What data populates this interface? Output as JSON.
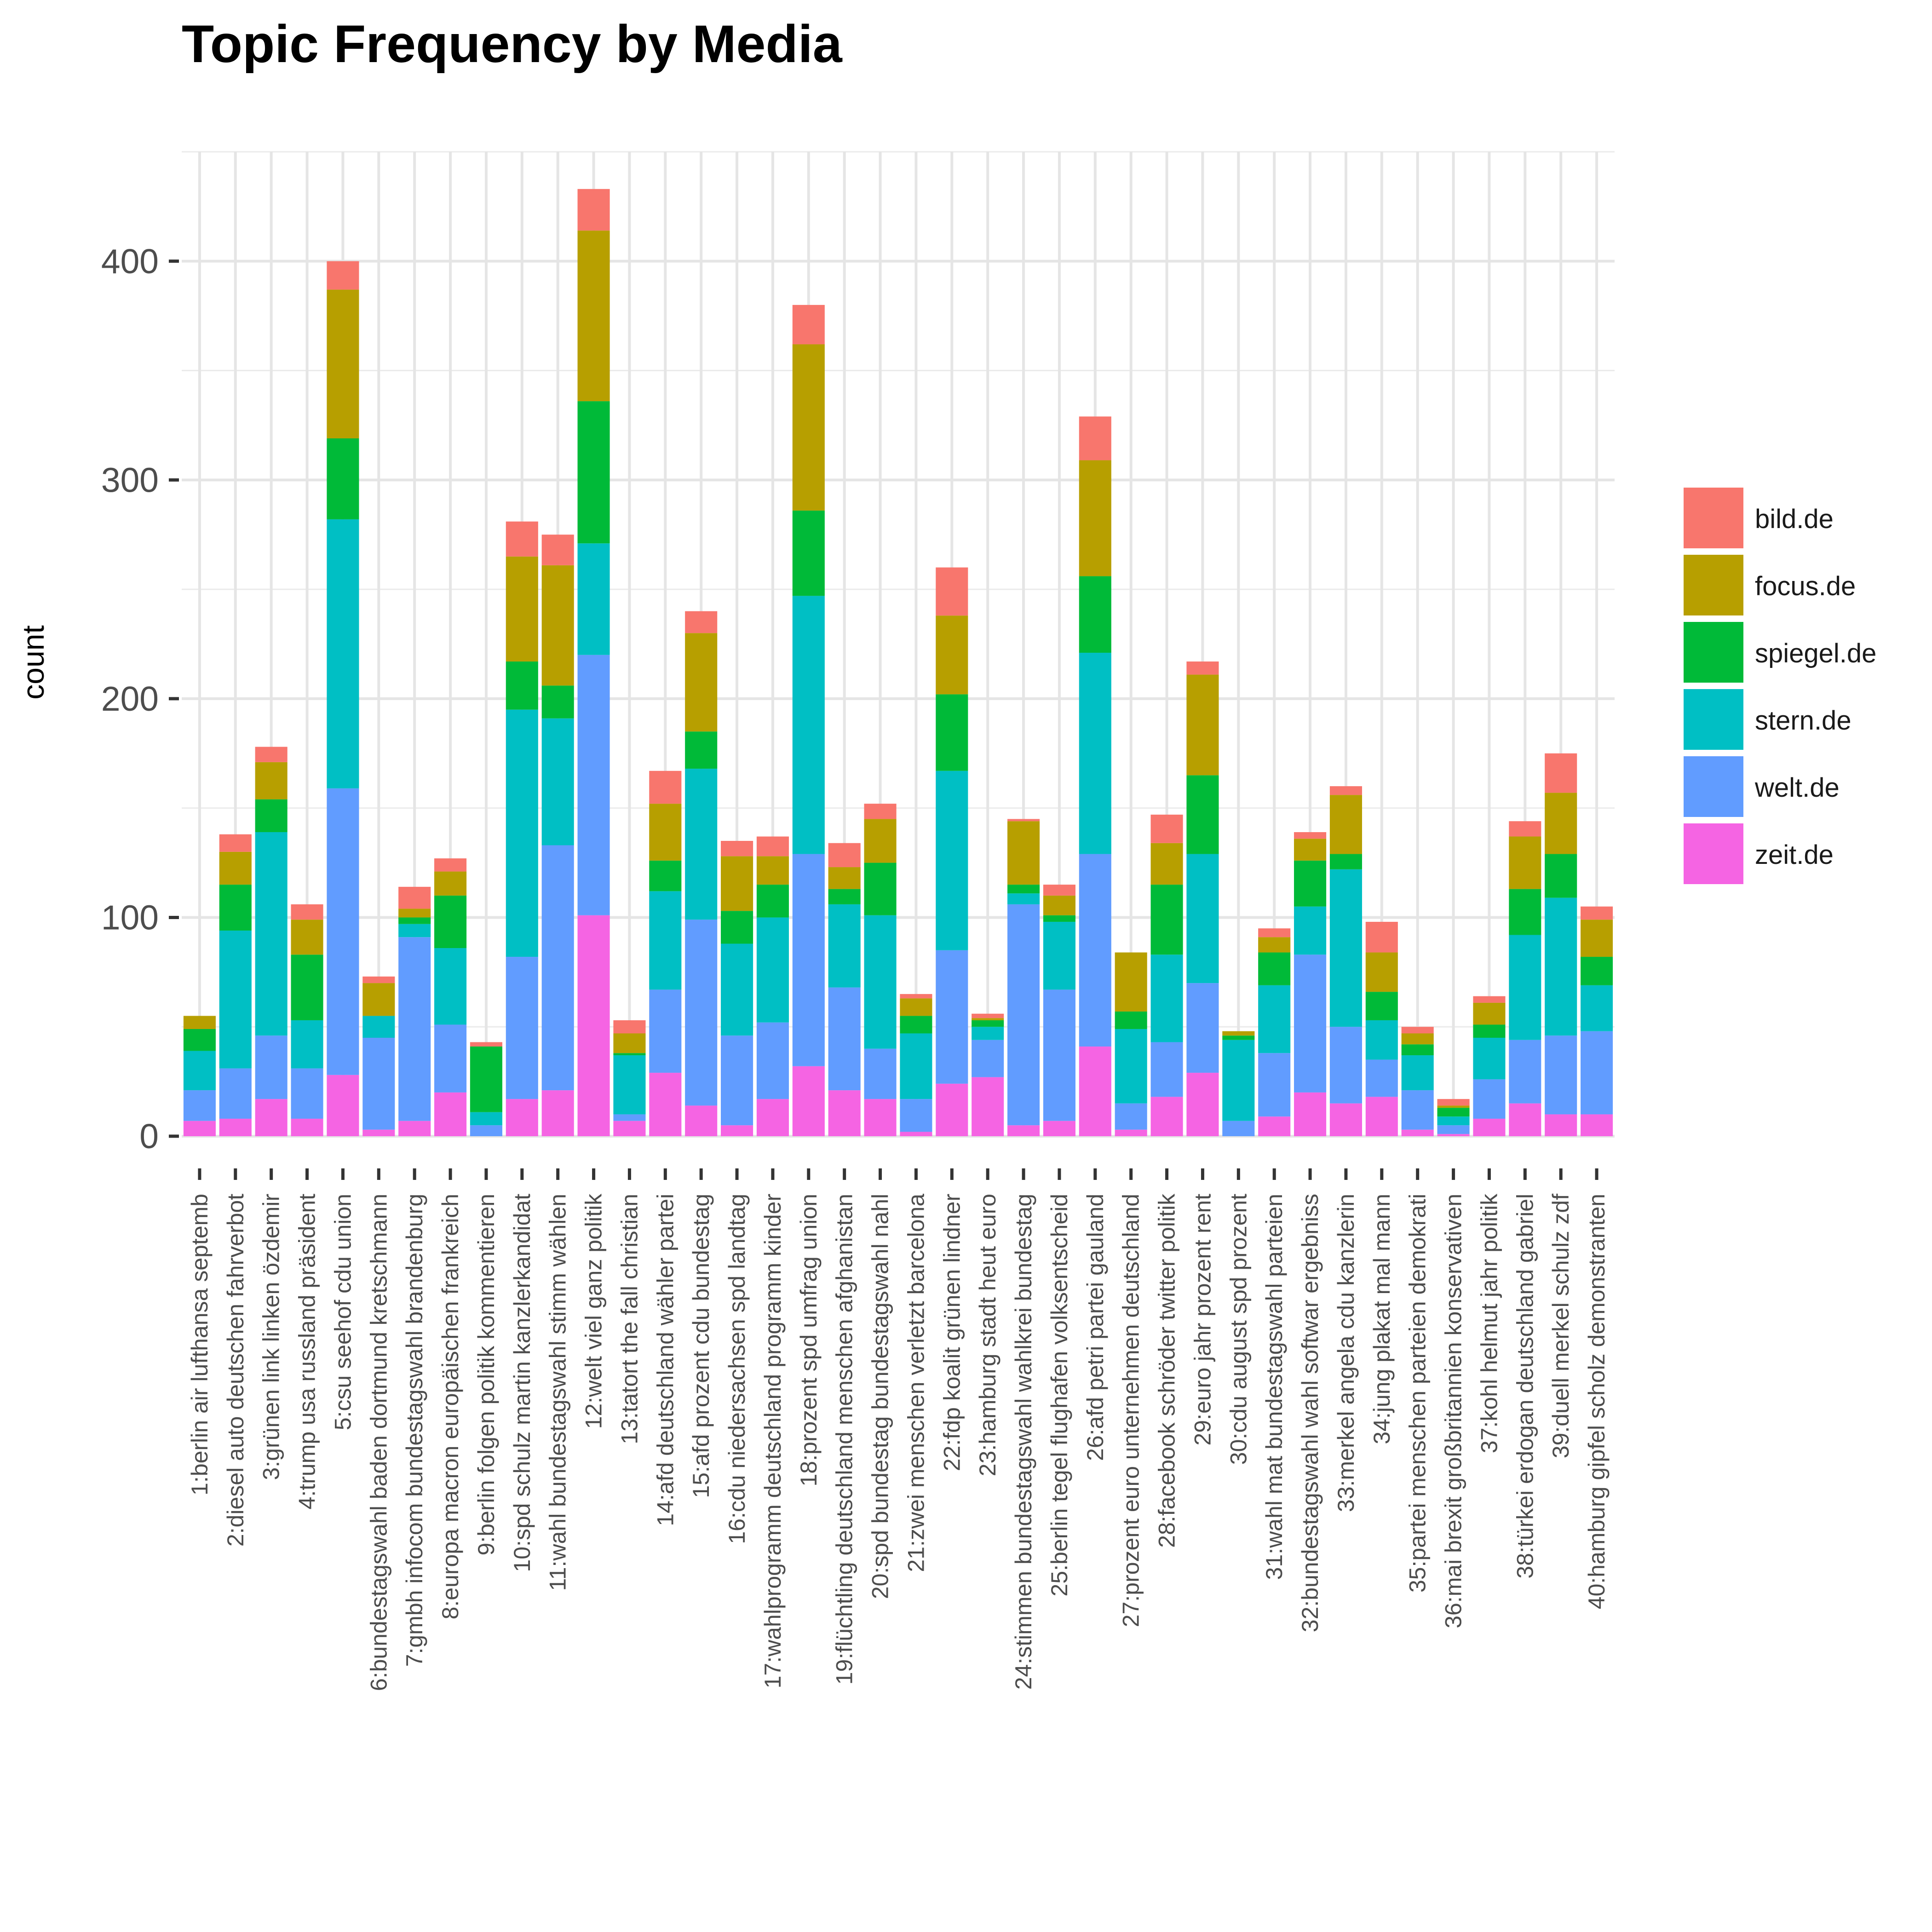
{
  "chart_data": {
    "type": "bar",
    "stacked": true,
    "title": "Topic Frequency by Media",
    "xlabel": "",
    "ylabel": "count",
    "ylim": [
      0,
      450
    ],
    "yticks": [
      0,
      100,
      200,
      300,
      400
    ],
    "grid": true,
    "legend_position": "right",
    "categories": [
      "1:berlin air lufthansa septemb",
      "2:diesel auto deutschen fahrverbot",
      "3:grünen link linken özdemir",
      "4:trump usa russland präsident",
      "5:csu seehof cdu union",
      "6:bundestagswahl baden dortmund kretschmann",
      "7:gmbh infocom bundestagswahl brandenburg",
      "8:europa macron europäischen frankreich",
      "9:berlin folgen politik kommentieren",
      "10:spd schulz martin kanzlerkandidat",
      "11:wahl bundestagswahl stimm wählen",
      "12:welt viel ganz politik",
      "13:tatort the fall christian",
      "14:afd deutschland wähler partei",
      "15:afd prozent cdu bundestag",
      "16:cdu niedersachsen spd landtag",
      "17:wahlprogramm deutschland programm kinder",
      "18:prozent spd umfrag union",
      "19:flüchtling deutschland menschen afghanistan",
      "20:spd bundestag bundestagswahl nahl",
      "21:zwei menschen verletzt barcelona",
      "22:fdp koalit grünen lindner",
      "23:hamburg stadt heut euro",
      "24:stimmen bundestagswahl wahlkrei bundestag",
      "25:berlin tegel flughafen volksentscheid",
      "26:afd petri partei gauland",
      "27:prozent euro unternehmen deutschland",
      "28:facebook schröder twitter politik",
      "29:euro jahr prozent rent",
      "30:cdu august spd prozent",
      "31:wahl mat bundestagswahl parteien",
      "32:bundestagswahl wahl softwar ergebniss",
      "33:merkel angela cdu kanzlerin",
      "34:jung plakat mal mann",
      "35:partei menschen parteien demokrati",
      "36:mai brexit großbritannien konservativen",
      "37:kohl helmut jahr politik",
      "38:türkei erdogan deutschland gabriel",
      "39:duell merkel schulz zdf",
      "40:hamburg gipfel scholz demonstranten"
    ],
    "series": [
      {
        "name": "zeit.de",
        "color": "#F564E3",
        "values": [
          7,
          8,
          17,
          8,
          28,
          3,
          7,
          20,
          0,
          17,
          21,
          101,
          7,
          29,
          14,
          5,
          17,
          32,
          21,
          17,
          2,
          24,
          27,
          5,
          7,
          41,
          3,
          18,
          29,
          0,
          9,
          20,
          15,
          18,
          3,
          1,
          8,
          15,
          10,
          10
        ]
      },
      {
        "name": "welt.de",
        "color": "#619CFF",
        "values": [
          14,
          23,
          29,
          23,
          131,
          42,
          84,
          31,
          5,
          65,
          112,
          119,
          3,
          38,
          85,
          41,
          35,
          97,
          47,
          23,
          15,
          61,
          17,
          101,
          60,
          88,
          12,
          25,
          41,
          7,
          29,
          63,
          35,
          17,
          18,
          4,
          18,
          29,
          36,
          38
        ]
      },
      {
        "name": "stern.de",
        "color": "#00BFC4",
        "values": [
          18,
          63,
          93,
          22,
          123,
          10,
          6,
          35,
          6,
          113,
          58,
          51,
          27,
          45,
          69,
          42,
          48,
          118,
          38,
          61,
          30,
          82,
          6,
          5,
          31,
          92,
          34,
          40,
          59,
          37,
          31,
          22,
          72,
          18,
          16,
          4,
          19,
          48,
          63,
          21
        ]
      },
      {
        "name": "spiegel.de",
        "color": "#00BA38",
        "values": [
          10,
          21,
          15,
          30,
          37,
          0,
          3,
          24,
          30,
          22,
          15,
          65,
          1,
          14,
          17,
          15,
          15,
          39,
          7,
          24,
          8,
          35,
          3,
          4,
          3,
          35,
          8,
          32,
          36,
          2,
          15,
          21,
          7,
          13,
          5,
          4,
          6,
          21,
          20,
          13
        ]
      },
      {
        "name": "focus.de",
        "color": "#B79F00",
        "values": [
          6,
          15,
          17,
          16,
          68,
          15,
          4,
          11,
          0,
          48,
          55,
          78,
          9,
          26,
          45,
          25,
          13,
          76,
          10,
          20,
          8,
          36,
          1,
          29,
          9,
          53,
          27,
          19,
          46,
          2,
          7,
          10,
          27,
          18,
          5,
          1,
          10,
          24,
          28,
          17
        ]
      },
      {
        "name": "bild.de",
        "color": "#F8766D",
        "values": [
          0,
          8,
          7,
          7,
          13,
          3,
          10,
          6,
          2,
          16,
          14,
          19,
          6,
          15,
          10,
          7,
          9,
          18,
          11,
          7,
          2,
          22,
          2,
          1,
          5,
          20,
          0,
          13,
          6,
          0,
          4,
          3,
          4,
          14,
          3,
          3,
          3,
          7,
          18,
          6
        ]
      }
    ]
  }
}
